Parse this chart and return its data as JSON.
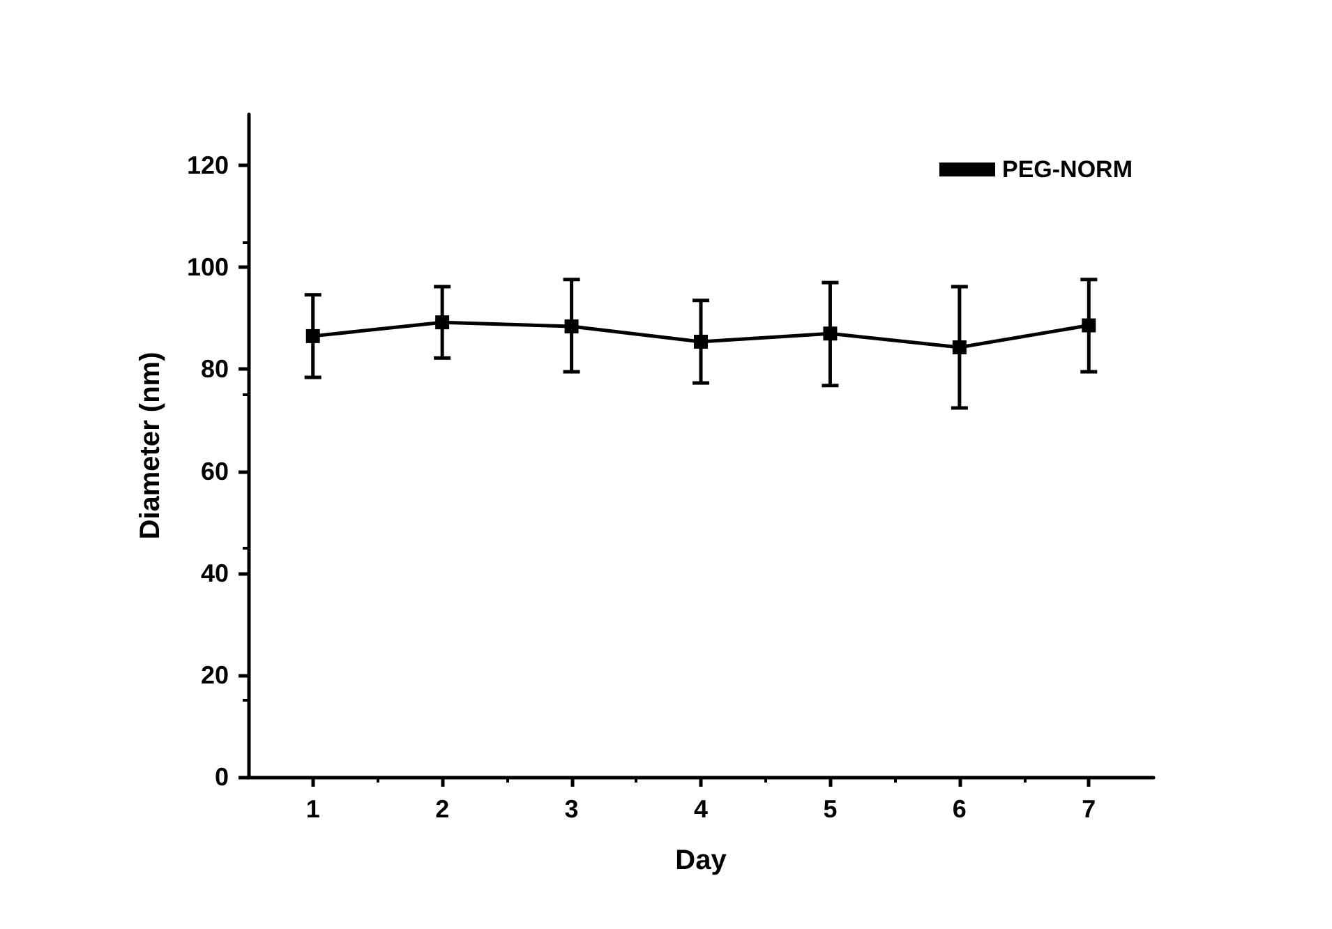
{
  "chart_data": {
    "type": "line",
    "xlabel": "Day",
    "ylabel": "Diameter (nm)",
    "x": [
      1,
      2,
      3,
      4,
      5,
      6,
      7
    ],
    "series": [
      {
        "name": "PEG-NORM",
        "color": "#000000",
        "values": [
          86.5,
          89.2,
          88.4,
          85.4,
          87.0,
          84.3,
          88.6
        ],
        "errors": [
          [
            78.4,
            94.6
          ],
          [
            82.2,
            96.2
          ],
          [
            79.5,
            97.6
          ],
          [
            77.3,
            93.5
          ],
          [
            76.8,
            97.0
          ],
          [
            72.4,
            96.2
          ],
          [
            79.5,
            97.6
          ]
        ]
      }
    ],
    "xlim": [
      0.5,
      7.5
    ],
    "xticks": [
      1,
      2,
      3,
      4,
      5,
      6,
      7
    ],
    "ylim": [
      0,
      130
    ],
    "yticks": [
      0,
      20,
      40,
      60,
      80,
      100,
      120
    ],
    "grid": false,
    "legend": "top right",
    "marker": "square",
    "line_style": "solid"
  }
}
